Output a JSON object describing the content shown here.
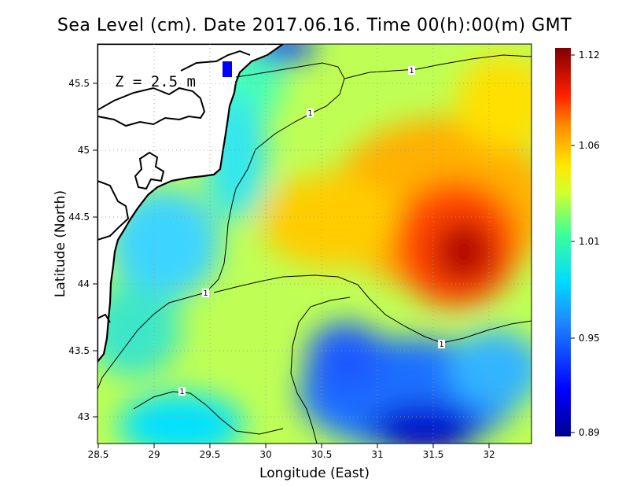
{
  "title": "Sea Level (cm). Date 2017.06.16. Time 00(h):00(m) GMT",
  "depth_label": "Z = 2.5 m",
  "map": {
    "type": "heatmap",
    "variable": "Sea Level",
    "units": "cm",
    "xlabel": "Longitude (East)",
    "ylabel": "Latitude (North)",
    "xlim": [
      28.5,
      32.4
    ],
    "ylim": [
      42.8,
      45.8
    ],
    "x_ticks": [
      "28.5",
      "29",
      "29.5",
      "30",
      "30.5",
      "31",
      "31.5",
      "32"
    ],
    "y_ticks": [
      "43",
      "43.5",
      "44",
      "44.5",
      "45",
      "45.5"
    ],
    "grid": true,
    "colorbar": {
      "min": 0.89,
      "max": 1.12,
      "ticks": [
        "1.12",
        "1.06",
        "1.01",
        "0.95",
        "0.89"
      ]
    },
    "contour_labels": [
      "1",
      "1",
      "1",
      "1",
      "1"
    ],
    "features": {
      "high_center": {
        "lon": 31.8,
        "lat": 44.2,
        "value": 1.12
      },
      "low_center": {
        "lon": 31.6,
        "lat": 42.9,
        "value": 0.89
      }
    }
  }
}
